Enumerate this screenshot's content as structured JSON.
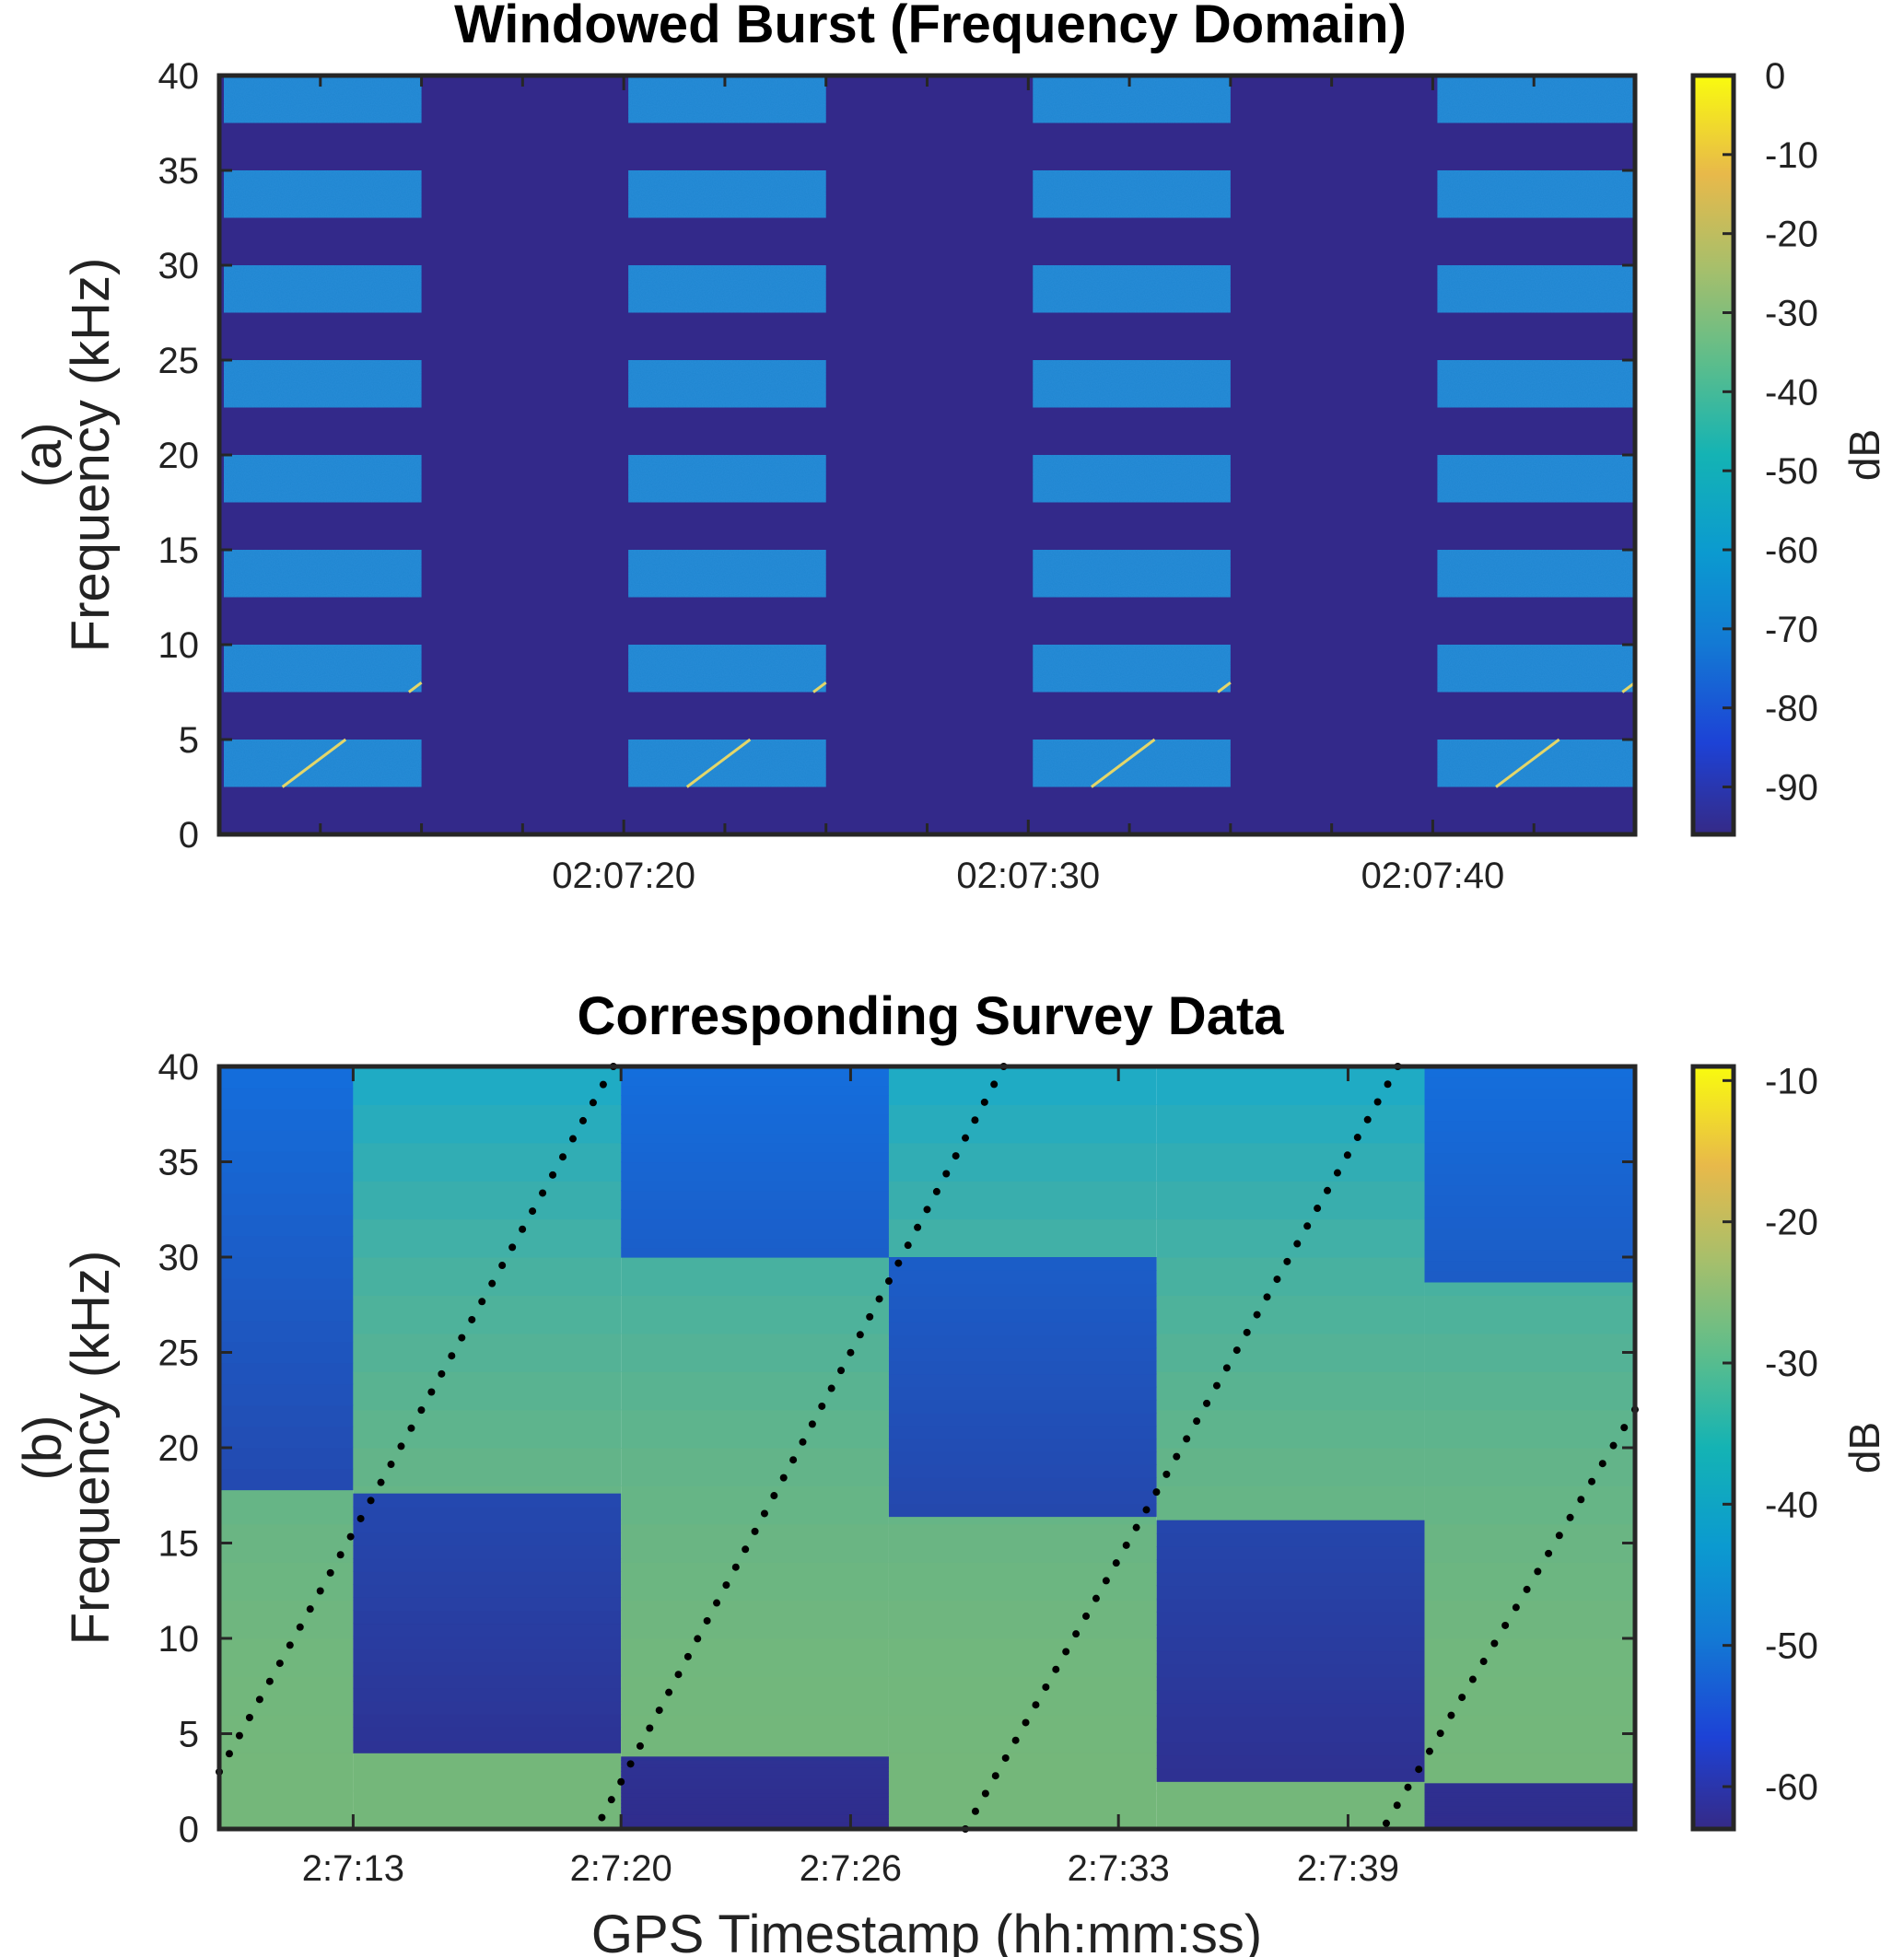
{
  "chart_data": [
    {
      "type": "heatmap",
      "title": "Windowed Burst (Frequency Domain)",
      "ylabel": "(a) Frequency (kHz)",
      "ylabel_prefix": "(a)",
      "ylabel_main": "Frequency (kHz)",
      "ylim": [
        0,
        40
      ],
      "yticks": [
        0,
        5,
        10,
        15,
        20,
        25,
        30,
        35,
        40
      ],
      "xlim_seconds": [
        10,
        45
      ],
      "xticks": [
        {
          "t": 20,
          "label": "02:07:20"
        },
        {
          "t": 30,
          "label": "02:07:30"
        },
        {
          "t": 40,
          "label": "02:07:40"
        }
      ],
      "x_minor_ticks": [
        12.5,
        15,
        17.5,
        22.5,
        25,
        27.5,
        32.5,
        35,
        37.5,
        42.5
      ],
      "burst_windows": [
        [
          10,
          15
        ],
        [
          20,
          25
        ],
        [
          30,
          35
        ],
        [
          40,
          45
        ]
      ],
      "frequency_bands_khz": [
        [
          2.5,
          5
        ],
        [
          7.5,
          10
        ],
        [
          12.5,
          15
        ],
        [
          17.5,
          20
        ],
        [
          22.5,
          25
        ],
        [
          27.5,
          30
        ],
        [
          32.5,
          35
        ],
        [
          37.5,
          40
        ]
      ],
      "sweep_rate_khz_per_s": 1.6,
      "colorbar": {
        "label": "dB",
        "range": [
          -96,
          0
        ],
        "ticks": [
          0,
          -10,
          -20,
          -30,
          -40,
          -50,
          -60,
          -70,
          -80,
          -90
        ]
      },
      "background_db": -92,
      "band_db": -68
    },
    {
      "type": "heatmap",
      "title": "Corresponding Survey Data",
      "ylabel": "(b) Frequency (kHz)",
      "ylabel_prefix": "(b)",
      "ylabel_main": "Frequency (kHz)",
      "xlabel": "GPS Timestamp (hh:mm:ss)",
      "ylim": [
        0,
        40
      ],
      "yticks": [
        0,
        5,
        10,
        15,
        20,
        25,
        30,
        35,
        40
      ],
      "xlim_seconds": [
        9.5,
        46.5
      ],
      "xticks": [
        {
          "t": 13,
          "label": "2:7:13"
        },
        {
          "t": 20,
          "label": "2:7:20"
        },
        {
          "t": 26,
          "label": "2:7:26"
        },
        {
          "t": 33,
          "label": "2:7:33"
        },
        {
          "t": 39,
          "label": "2:7:39"
        }
      ],
      "columns": [
        {
          "t0": 9.5,
          "t1": 13.0,
          "low_below_khz": 17.8,
          "low_region": "top"
        },
        {
          "t0": 13.0,
          "t1": 20.0,
          "low_from_khz": 4.0,
          "low_to_khz": 17.6
        },
        {
          "t0": 20.0,
          "t1": 27.0,
          "low_from_khz": 30.0,
          "low_to_khz": 40,
          "low2_from_khz": 0,
          "low2_to_khz": 3.8
        },
        {
          "t0": 27.0,
          "t1": 34.0,
          "low_from_khz": 16.4,
          "low_to_khz": 30.0
        },
        {
          "t0": 34.0,
          "t1": 41.0,
          "low_from_khz": 2.5,
          "low_to_khz": 16.2
        },
        {
          "t0": 41.0,
          "t1": 46.5,
          "low_from_khz": 28.7,
          "low_to_khz": 40,
          "low2_from_khz": 0,
          "low2_to_khz": 2.4
        }
      ],
      "dotted_sweeps": [
        {
          "t_start": 9.5,
          "f_start": 3.0,
          "t_end": 19.8,
          "f_end": 40
        },
        {
          "t_start": 19.5,
          "f_start": 0.6,
          "t_end": 30.0,
          "f_end": 40
        },
        {
          "t_start": 29.0,
          "f_start": 0.0,
          "t_end": 40.3,
          "f_end": 40
        },
        {
          "t_start": 40.0,
          "f_start": 0.3,
          "t_end": 46.5,
          "f_end": 22.0
        }
      ],
      "colorbar": {
        "label": "dB",
        "range": [
          -63,
          -9
        ],
        "ticks": [
          -10,
          -20,
          -30,
          -40,
          -50,
          -60
        ]
      }
    }
  ]
}
